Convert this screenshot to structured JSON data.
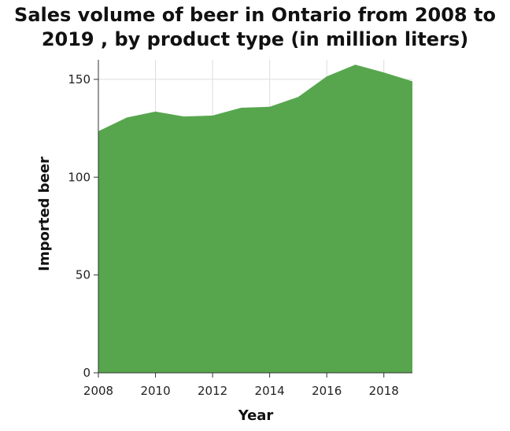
{
  "chart_data": {
    "type": "area",
    "title": "Sales volume of beer in Ontario from 2008 to 2019 , by product type (in million liters)",
    "xlabel": "Year",
    "ylabel": "Imported beer",
    "x": [
      2008,
      2009,
      2010,
      2011,
      2012,
      2013,
      2014,
      2015,
      2016,
      2017,
      2018,
      2019
    ],
    "series": [
      {
        "values": [
          123.5,
          130.5,
          133.5,
          131,
          131.5,
          135.5,
          136,
          141,
          151.5,
          157.5,
          153.5,
          149
        ]
      }
    ],
    "xlim": [
      2008,
      2019
    ],
    "ylim": [
      0,
      160
    ],
    "xticks": [
      2008,
      2010,
      2012,
      2014,
      2016,
      2018
    ],
    "xtick_labels": [
      "2008",
      "2010",
      "2012",
      "2014",
      "2016",
      "2018"
    ],
    "yticks": [
      0,
      50,
      100,
      150
    ],
    "ytick_labels": [
      "0",
      "50",
      "100",
      "150"
    ],
    "grid": true,
    "fill_color": "#57a64e",
    "grid_color": "#dddddd"
  }
}
